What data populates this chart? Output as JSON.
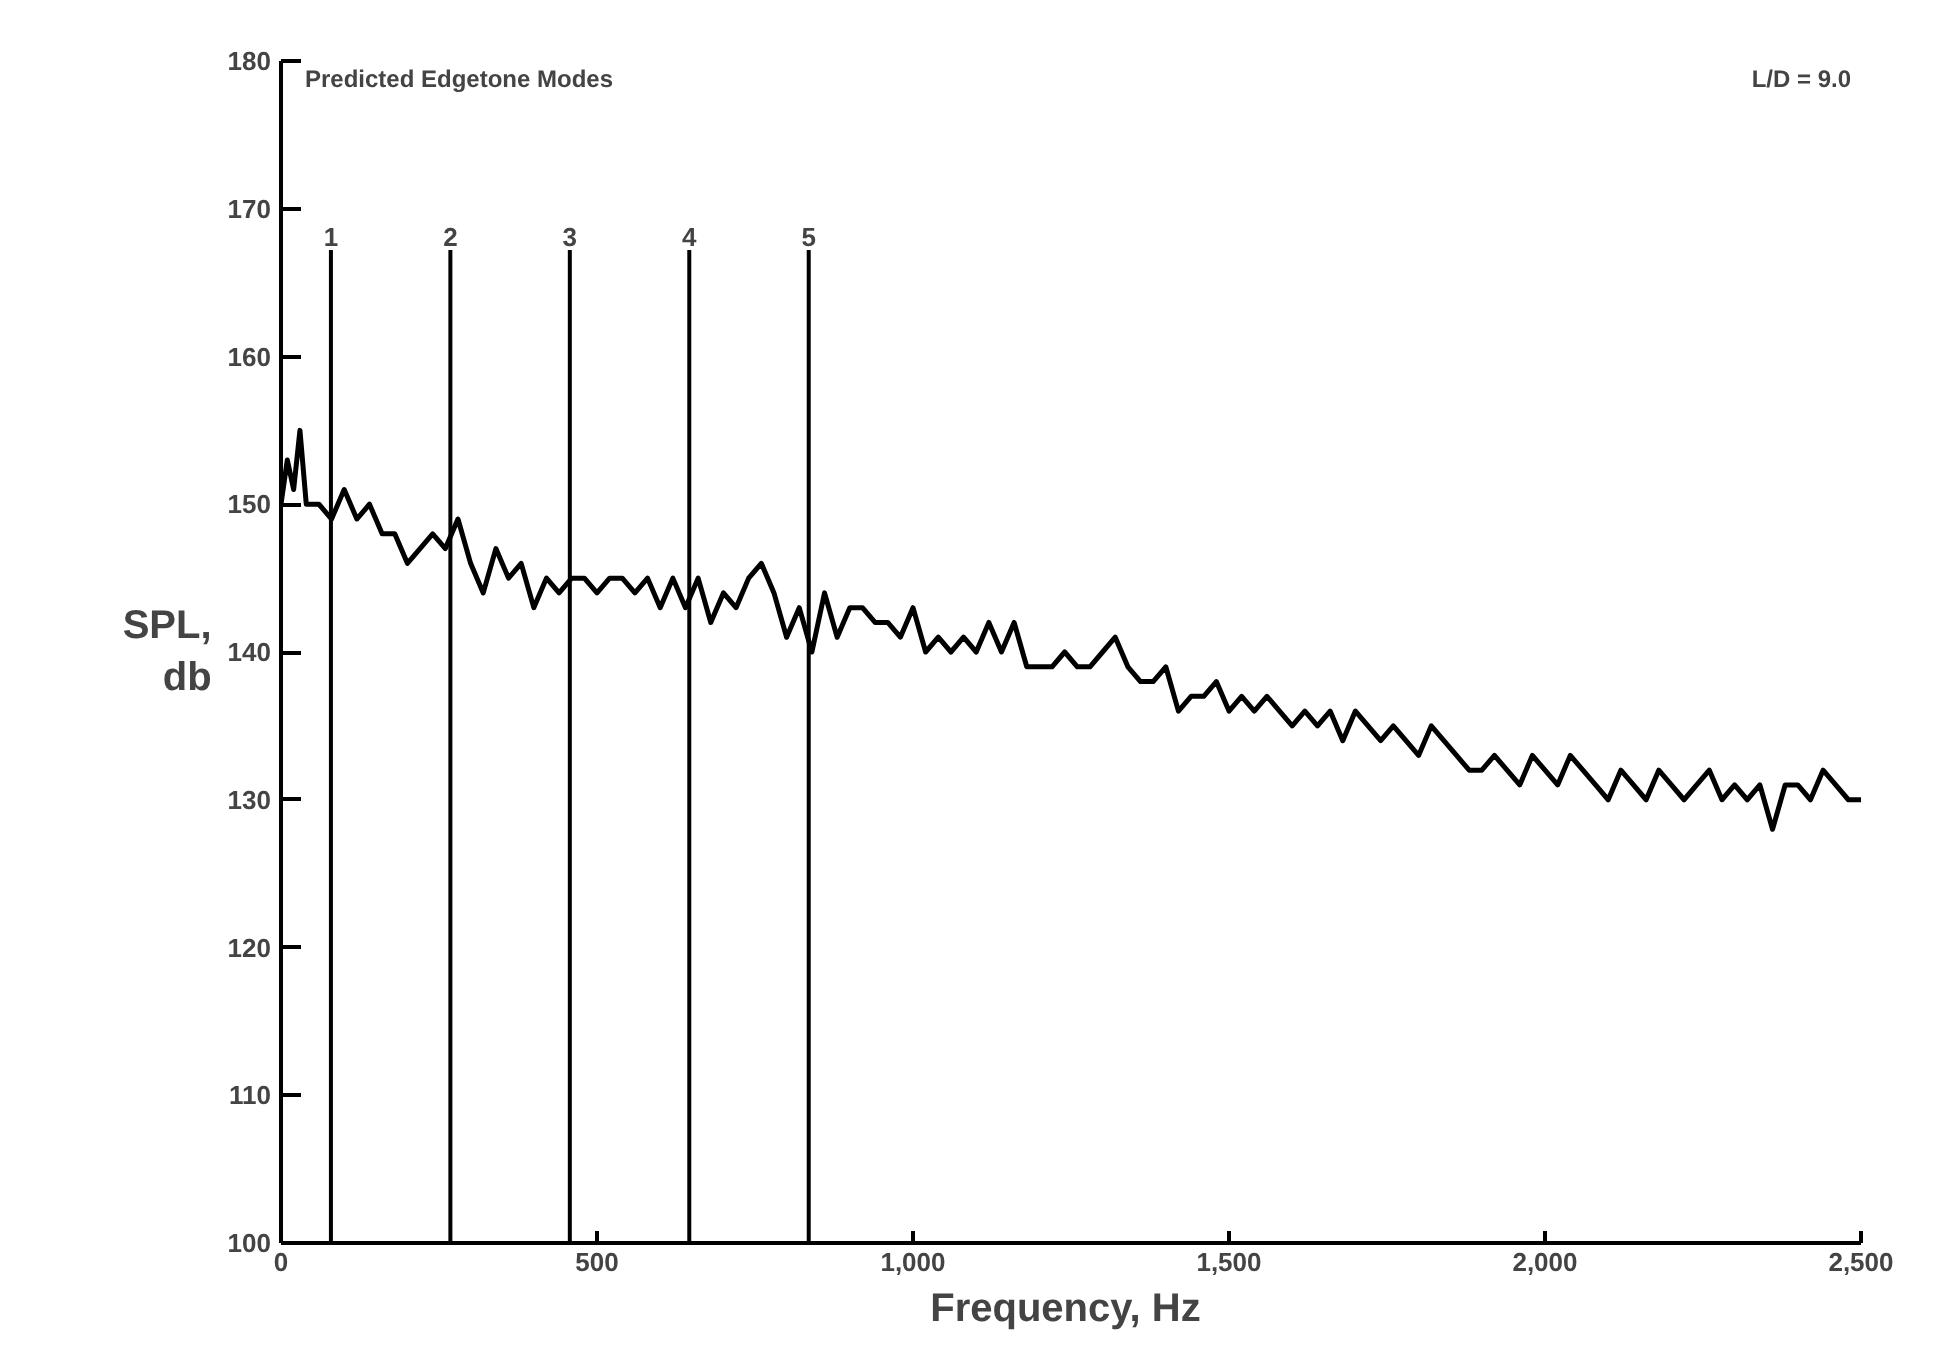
{
  "chart_data": {
    "type": "line",
    "xlabel": "Frequency,  Hz",
    "ylabel": "SPL,\ndb",
    "annotations": [
      "Predicted Edgetone Modes",
      "L/D = 9.0",
      "1",
      "2",
      "3",
      "4",
      "5"
    ],
    "xlim": [
      0,
      2500
    ],
    "ylim": [
      100,
      180
    ],
    "xticks": [
      0,
      500,
      {
        "value": 1000,
        "label": "1,000"
      },
      {
        "value": 1500,
        "label": "1,500"
      },
      {
        "value": 2000,
        "label": "2,000"
      },
      {
        "value": 2500,
        "label": "2,500"
      }
    ],
    "yticks": [
      100,
      110,
      120,
      130,
      140,
      150,
      160,
      170,
      180
    ],
    "grid": false,
    "marker": "none",
    "line_style": "solid",
    "ref_lines": [
      {
        "axis": "x",
        "value": 79,
        "color": "#000000"
      },
      {
        "axis": "x",
        "value": 268,
        "color": "#000000"
      },
      {
        "axis": "x",
        "value": 457,
        "color": "#000000"
      },
      {
        "axis": "x",
        "value": 646,
        "color": "#000000"
      },
      {
        "axis": "x",
        "value": 835,
        "color": "#000000"
      }
    ],
    "series": [
      {
        "color": "#000000",
        "x": [
          0,
          10,
          20,
          30,
          40,
          60,
          80,
          100,
          120,
          140,
          160,
          180,
          200,
          220,
          240,
          260,
          280,
          300,
          320,
          340,
          360,
          380,
          400,
          420,
          440,
          460,
          480,
          500,
          520,
          540,
          560,
          580,
          600,
          620,
          640,
          660,
          680,
          700,
          720,
          740,
          760,
          780,
          800,
          820,
          840,
          860,
          880,
          900,
          920,
          940,
          960,
          980,
          1000,
          1020,
          1040,
          1060,
          1080,
          1100,
          1120,
          1140,
          1160,
          1180,
          1200,
          1220,
          1240,
          1260,
          1280,
          1300,
          1320,
          1340,
          1360,
          1380,
          1400,
          1420,
          1440,
          1460,
          1480,
          1500,
          1520,
          1540,
          1560,
          1580,
          1600,
          1620,
          1640,
          1660,
          1680,
          1700,
          1720,
          1740,
          1760,
          1780,
          1800,
          1820,
          1840,
          1860,
          1880,
          1900,
          1920,
          1940,
          1960,
          1980,
          2000,
          2020,
          2040,
          2060,
          2080,
          2100,
          2120,
          2140,
          2160,
          2180,
          2200,
          2220,
          2240,
          2260,
          2280,
          2300,
          2320,
          2340,
          2360,
          2380,
          2400,
          2420,
          2440,
          2460,
          2480,
          2500
        ],
        "values": [
          150,
          153,
          151,
          155,
          150,
          150,
          149,
          151,
          149,
          150,
          148,
          148,
          146,
          147,
          148,
          147,
          149,
          146,
          144,
          147,
          145,
          146,
          143,
          145,
          144,
          145,
          145,
          144,
          145,
          145,
          144,
          145,
          143,
          145,
          143,
          145,
          142,
          144,
          143,
          145,
          146,
          144,
          141,
          143,
          140,
          144,
          141,
          143,
          143,
          142,
          142,
          141,
          143,
          140,
          141,
          140,
          141,
          140,
          142,
          140,
          142,
          139,
          139,
          139,
          140,
          139,
          139,
          140,
          141,
          139,
          138,
          138,
          139,
          136,
          137,
          137,
          138,
          136,
          137,
          136,
          137,
          136,
          135,
          136,
          135,
          136,
          134,
          136,
          135,
          134,
          135,
          134,
          133,
          135,
          134,
          133,
          132,
          132,
          133,
          132,
          131,
          133,
          132,
          131,
          133,
          132,
          131,
          130,
          132,
          131,
          130,
          132,
          131,
          130,
          131,
          132,
          130,
          131,
          130,
          131,
          128,
          131,
          131,
          130,
          132,
          131,
          130,
          130
        ]
      }
    ]
  }
}
